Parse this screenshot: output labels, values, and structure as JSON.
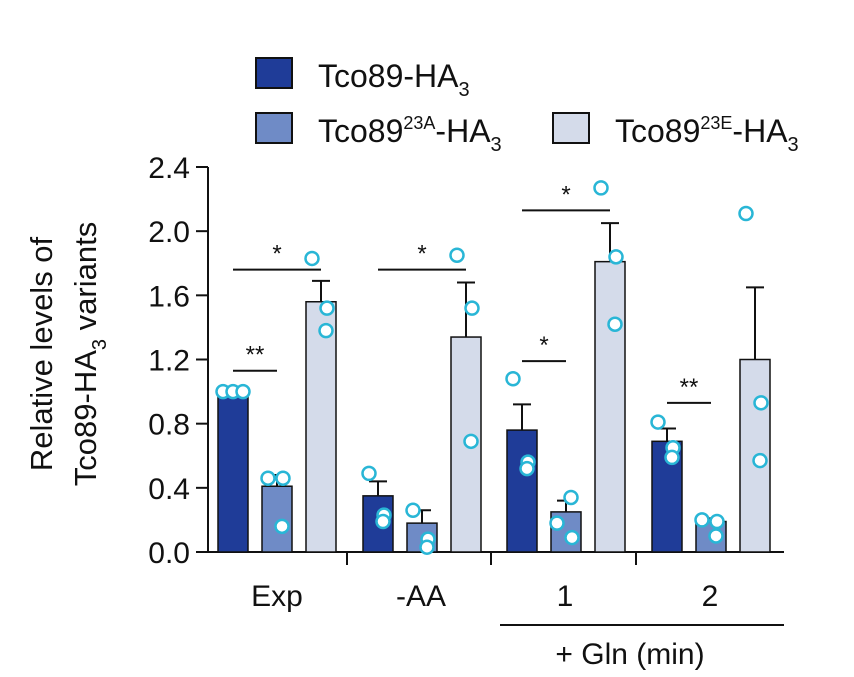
{
  "chart_data": {
    "type": "bar",
    "ylabel_line1": "Relative  levels of",
    "ylabel_line2_base": "Tco89-HA",
    "ylabel_line2_sub": "3",
    "ylabel_line2_rest": " variants",
    "ylim": [
      0,
      2.4
    ],
    "yticks": [
      "0.0",
      "0.4",
      "0.8",
      "1.2",
      "1.6",
      "2.0",
      "2.4"
    ],
    "ytick_values": [
      0,
      0.4,
      0.8,
      1.2,
      1.6,
      2.0,
      2.4
    ],
    "categories": [
      "Exp",
      "-AA",
      "1",
      "2"
    ],
    "group_axis_label": "+ Gln (min)",
    "series": [
      {
        "name": "Tco89-HA3",
        "legend_base": "Tco89-HA",
        "legend_sup": "",
        "legend_sub": "3",
        "color": "#1f3c98",
        "values": [
          1.0,
          0.35,
          0.76,
          0.69
        ],
        "errors": [
          0.0,
          0.09,
          0.16,
          0.08
        ],
        "points": [
          [
            1.0,
            1.0,
            1.0
          ],
          [
            0.49,
            0.23,
            0.19
          ],
          [
            1.08,
            0.56,
            0.52
          ],
          [
            0.81,
            0.65,
            0.59
          ]
        ]
      },
      {
        "name": "Tco89 23A-HA3",
        "legend_base": "Tco89",
        "legend_sup": "23A",
        "legend_suffix": "-HA",
        "legend_sub": "3",
        "color": "#6f8bc6",
        "values": [
          0.41,
          0.18,
          0.25,
          0.19
        ],
        "errors": [
          0.07,
          0.08,
          0.07,
          0.02
        ],
        "points": [
          [
            0.46,
            0.46,
            0.16
          ],
          [
            0.26,
            0.08,
            0.03
          ],
          [
            0.18,
            0.09,
            0.34
          ],
          [
            0.2,
            0.19,
            0.1
          ]
        ]
      },
      {
        "name": "Tco89 23E-HA3",
        "legend_base": "Tco89",
        "legend_sup": "23E",
        "legend_suffix": "-HA",
        "legend_sub": "3",
        "color": "#d4dbea",
        "values": [
          1.56,
          1.34,
          1.81,
          1.2
        ],
        "errors": [
          0.13,
          0.34,
          0.24,
          0.45
        ],
        "points": [
          [
            1.83,
            1.52,
            1.38
          ],
          [
            1.85,
            1.52,
            0.69
          ],
          [
            2.27,
            1.84,
            1.42
          ],
          [
            2.11,
            0.93,
            0.57
          ]
        ]
      }
    ],
    "significance": [
      {
        "label": "**",
        "group": 0,
        "from_series": 0,
        "to_series": 1,
        "y": 1.13
      },
      {
        "label": "*",
        "group": 0,
        "from_series": 0,
        "to_series": 2,
        "y": 1.76
      },
      {
        "label": "*",
        "group": 1,
        "from_series": 0,
        "to_series": 2,
        "y": 1.76
      },
      {
        "label": "*",
        "group": 2,
        "from_series": 0,
        "to_series": 2,
        "y": 2.13
      },
      {
        "label": "*",
        "group": 2,
        "from_series": 0,
        "to_series": 1,
        "y": 1.19
      },
      {
        "label": "**",
        "group": 3,
        "from_series": 0,
        "to_series": 1,
        "y": 0.93
      }
    ],
    "point_color": "#29b6d6"
  }
}
